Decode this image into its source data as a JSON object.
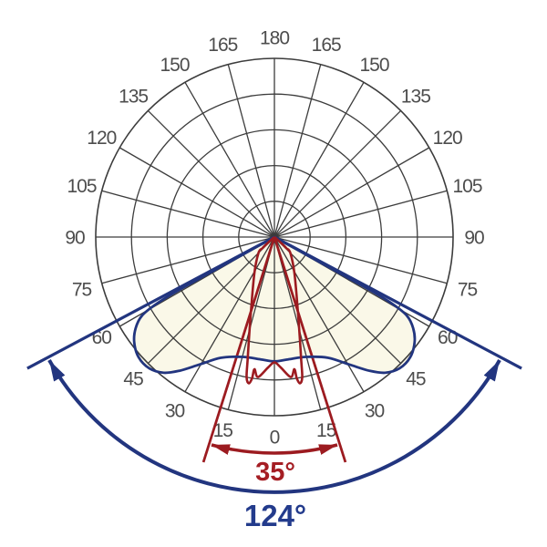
{
  "page": {
    "background": "#ffffff"
  },
  "chart_data": {
    "type": "polar",
    "description": "Luminous intensity polar distribution diagram with two beam curves and beam-angle annotations. Angles in degrees from nadir (0 = straight down, 180 = zenith). Radii are relative to the outer grid ring.",
    "angle_ticks": [
      0,
      15,
      30,
      45,
      60,
      75,
      90,
      105,
      120,
      135,
      150,
      165,
      180
    ],
    "grid": {
      "rings": 5,
      "radial_step_deg": 15,
      "line_color": "#3c3c3c",
      "tick_label_color": "#4d4d4d"
    },
    "series": [
      {
        "name": "wide-beam-distribution",
        "stroke": "#22357f",
        "fill": "#faf8e8",
        "points": [
          [
            -61,
            0
          ],
          [
            -61,
            0.21
          ],
          [
            -61,
            0.413
          ],
          [
            -61,
            0.602
          ],
          [
            -60.5,
            0.755
          ],
          [
            -59.3,
            0.862
          ],
          [
            -56.7,
            0.929
          ],
          [
            -53.2,
            0.98
          ],
          [
            -48.5,
            1.015
          ],
          [
            -43.6,
            1.015
          ],
          [
            -39.2,
            0.98
          ],
          [
            -35.4,
            0.918
          ],
          [
            -30.7,
            0.832
          ],
          [
            -24,
            0.74
          ],
          [
            -14.9,
            0.694
          ],
          [
            -6.4,
            0.689
          ],
          [
            0,
            0.696
          ],
          [
            6.4,
            0.689
          ],
          [
            14.9,
            0.694
          ],
          [
            24,
            0.74
          ],
          [
            30.7,
            0.832
          ],
          [
            35.4,
            0.918
          ],
          [
            39.2,
            0.98
          ],
          [
            43.6,
            1.015
          ],
          [
            48.5,
            1.015
          ],
          [
            53.2,
            0.98
          ],
          [
            56.7,
            0.929
          ],
          [
            59.3,
            0.862
          ],
          [
            60.5,
            0.755
          ],
          [
            61,
            0.602
          ],
          [
            61,
            0.413
          ],
          [
            61,
            0.21
          ],
          [
            61,
            0
          ]
        ]
      },
      {
        "name": "narrow-beam-distribution",
        "stroke": "#9c1b20",
        "fill": "none",
        "points": [
          [
            -48,
            0
          ],
          [
            -48,
            0.061
          ],
          [
            -47,
            0.092
          ],
          [
            -45,
            0.126
          ],
          [
            -28.8,
            0.233
          ],
          [
            -17,
            0.454
          ],
          [
            -12.3,
            0.705
          ],
          [
            -11.2,
            0.801
          ],
          [
            -9.9,
            0.831
          ],
          [
            -9,
            0.8
          ],
          [
            -8.6,
            0.748
          ],
          [
            -6.7,
            0.789
          ],
          [
            -2.8,
            0.731
          ],
          [
            0,
            0.702
          ],
          [
            2.8,
            0.731
          ],
          [
            6.7,
            0.789
          ],
          [
            8.6,
            0.748
          ],
          [
            9,
            0.8
          ],
          [
            9.9,
            0.831
          ],
          [
            11.2,
            0.801
          ],
          [
            12.3,
            0.705
          ],
          [
            17,
            0.454
          ],
          [
            28.8,
            0.233
          ],
          [
            45,
            0.126
          ],
          [
            47,
            0.092
          ],
          [
            48,
            0.061
          ],
          [
            48,
            0
          ]
        ]
      }
    ],
    "annotations": [
      {
        "name": "narrow-beam-angle",
        "label": "35°",
        "value_deg": 35,
        "half_angle_deg": 17.5,
        "color": "#a51e24",
        "line_color": "#9c1b20"
      },
      {
        "name": "wide-beam-angle",
        "label": "124°",
        "value_deg": 124,
        "half_angle_deg": 62,
        "color": "#233b8c",
        "line_color": "#22357f"
      }
    ]
  }
}
